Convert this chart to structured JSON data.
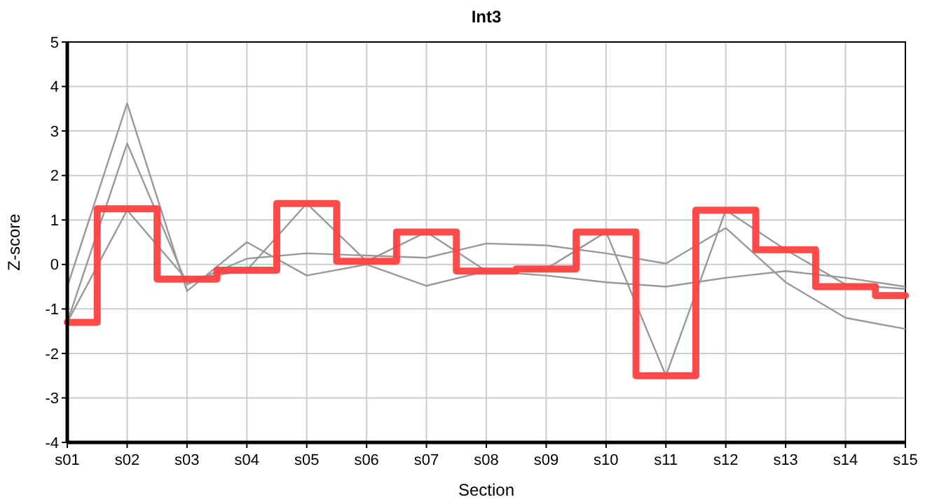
{
  "chart_data": {
    "type": "line",
    "title": "Int3",
    "xlabel": "Section",
    "ylabel": "Z-score",
    "categories": [
      "s01",
      "s02",
      "s03",
      "s04",
      "s05",
      "s06",
      "s07",
      "s08",
      "s09",
      "s10",
      "s11",
      "s12",
      "s13",
      "s14",
      "s15"
    ],
    "ylim": [
      -4,
      5
    ],
    "yticks": [
      -4,
      -3,
      -2,
      -1,
      0,
      1,
      2,
      3,
      4,
      5
    ],
    "grid": true,
    "marker": "none",
    "series": [
      {
        "color": "#999999",
        "values": [
          -1.3,
          1.22,
          -0.35,
          -0.13,
          1.37,
          0.07,
          0.73,
          -0.15,
          -0.1,
          0.73,
          -2.5,
          1.22,
          0.33,
          -0.45,
          -0.55
        ]
      },
      {
        "color": "#999999",
        "values": [
          -0.5,
          3.62,
          -0.6,
          0.5,
          -0.25,
          0,
          -0.48,
          -0.15,
          -0.25,
          -0.4,
          -0.5,
          -0.3,
          -0.15,
          -0.3,
          -0.5
        ]
      },
      {
        "color": "#999999",
        "values": [
          -1.3,
          2.72,
          -0.45,
          0.13,
          0.25,
          0.2,
          0.15,
          0.47,
          0.43,
          0.25,
          0.02,
          0.82,
          -0.4,
          -1.2,
          -1.45
        ]
      },
      {
        "type": "step",
        "color": "#ff4040",
        "values": [
          -1.3,
          1.25,
          -0.33,
          -0.13,
          1.37,
          0.07,
          0.73,
          -0.15,
          -0.1,
          0.73,
          -2.5,
          1.22,
          0.33,
          -0.5,
          -0.7
        ]
      }
    ]
  }
}
